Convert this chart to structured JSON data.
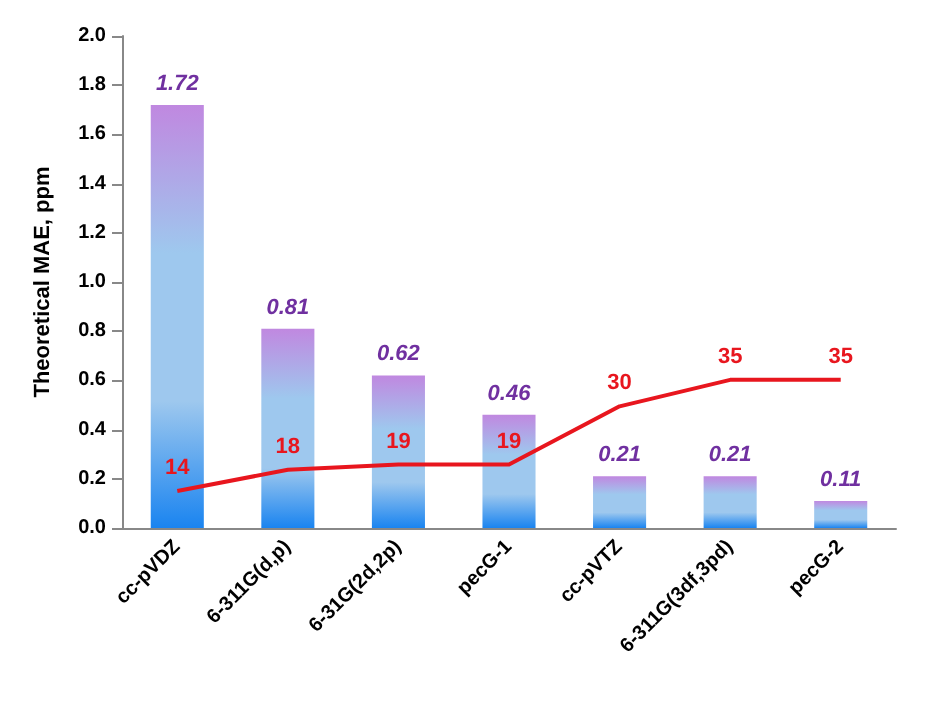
{
  "chart_data": {
    "type": "bar",
    "ylabel": "Theoretical MAE, ppm",
    "categories": [
      "cc-pVDZ",
      "6-311G(d,p)",
      "6-31G(2d,2p)",
      "pecG-1",
      "cc-pVTZ",
      "6-311G(3df,3pd)",
      "pecG-2"
    ],
    "series": [
      {
        "color": "#9ec8ee",
        "values": [
          1.72,
          0.81,
          0.62,
          0.46,
          0.21,
          0.21,
          0.11
        ]
      },
      {
        "type": "line",
        "axis": "y2",
        "color": "#e8161e",
        "values": [
          14,
          18,
          19,
          19,
          30,
          35,
          35
        ]
      }
    ],
    "ylim": [
      0,
      2
    ],
    "yticks": [
      {
        "value": 0,
        "label": "0.0"
      },
      {
        "value": 0.2,
        "label": "0.2"
      },
      {
        "value": 0.4,
        "label": "0.4"
      },
      {
        "value": 0.6,
        "label": "0.6"
      },
      {
        "value": 0.8,
        "label": "0.8"
      },
      {
        "value": 1,
        "label": "1.0"
      },
      {
        "value": 1.2,
        "label": "1.2"
      },
      {
        "value": 1.4,
        "label": "1.4"
      },
      {
        "value": 1.6,
        "label": "1.6"
      },
      {
        "value": 1.8,
        "label": "1.8"
      },
      {
        "value": 2,
        "label": "2.0"
      }
    ],
    "y2lim": [
      7,
      100
    ],
    "tick_labels": "xy",
    "data_labels": true,
    "grid": false,
    "marker": "none"
  }
}
